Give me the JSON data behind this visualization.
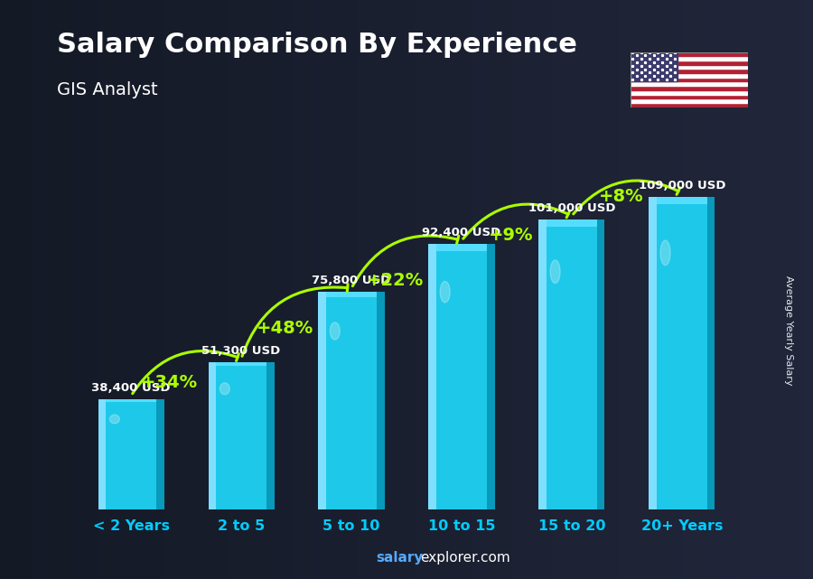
{
  "title": "Salary Comparison By Experience",
  "subtitle": "GIS Analyst",
  "categories": [
    "< 2 Years",
    "2 to 5",
    "5 to 10",
    "10 to 15",
    "15 to 20",
    "20+ Years"
  ],
  "values": [
    38400,
    51300,
    75800,
    92400,
    101000,
    109000
  ],
  "value_labels": [
    "38,400 USD",
    "51,300 USD",
    "75,800 USD",
    "92,400 USD",
    "101,000 USD",
    "109,000 USD"
  ],
  "pct_labels": [
    "+34%",
    "+48%",
    "+22%",
    "+9%",
    "+8%"
  ],
  "bar_main": "#1ec8e8",
  "bar_light": "#7fdfff",
  "bar_dark": "#0899bb",
  "bar_top": "#55ddff",
  "bg_color": "#1a2535",
  "title_color": "#ffffff",
  "subtitle_color": "#ffffff",
  "value_color": "#ffffff",
  "pct_color": "#aaff00",
  "xlabel_color": "#00ccff",
  "ylabel_text": "Average Yearly Salary",
  "footer_salary": "salary",
  "footer_rest": "explorer.com",
  "ylim_max": 125000,
  "bar_width": 0.6
}
